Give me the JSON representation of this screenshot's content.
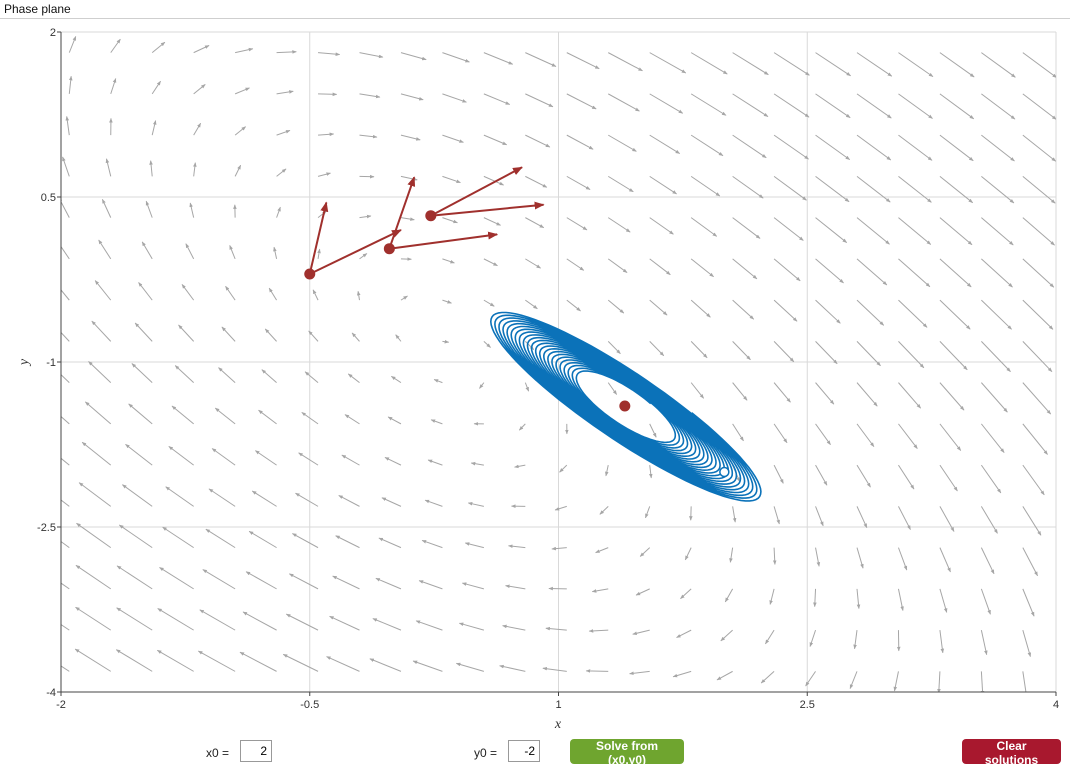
{
  "window": {
    "title": "Phase plane"
  },
  "controls": {
    "x0_label": "x0 =",
    "x0_value": "2",
    "y0_label": "y0 =",
    "y0_value": "-2",
    "solve_label": "Solve from (x0,y0)",
    "clear_label": "Clear solutions"
  },
  "colors": {
    "trajectory": "#0b72b9",
    "marker": "#a0302d",
    "field": "#a6a6a6",
    "grid": "#d9d9d9",
    "solve": "#6fa52f",
    "clear": "#a8182e"
  },
  "chart_data": {
    "type": "scatter",
    "xlabel": "x",
    "ylabel": "y",
    "xlim": [
      -2,
      4
    ],
    "ylim": [
      -4,
      2
    ],
    "x_ticks": [
      "-2",
      "-0.5",
      "1",
      "2.5",
      "4"
    ],
    "x_tick_values": [
      -2,
      -0.5,
      1,
      2.5,
      4
    ],
    "y_ticks": [
      "2",
      "0.5",
      "-1",
      "-2.5",
      "-4"
    ],
    "y_tick_values": [
      2,
      0.5,
      -1,
      -2.5,
      -4
    ],
    "grid": true,
    "equilibrium": {
      "x": 1.4,
      "y": -1.4
    },
    "start_point": {
      "x": 2.0,
      "y": -2.0
    },
    "spiral": {
      "center": [
        1.4,
        -1.4
      ],
      "rotation_deg": -34,
      "turns": 22,
      "semi_major": [
        0.67,
        1.97
      ],
      "semi_minor": [
        0.32,
        0.62
      ]
    },
    "probe_points": [
      {
        "x": -0.5,
        "y": -0.2,
        "v1": [
          0.1,
          0.65
        ],
        "v2": [
          0.55,
          0.4
        ]
      },
      {
        "x": -0.02,
        "y": 0.03,
        "v1": [
          0.15,
          0.65
        ],
        "v2": [
          0.65,
          0.13
        ]
      },
      {
        "x": 0.23,
        "y": 0.33,
        "v1": [
          0.55,
          0.44
        ],
        "v2": [
          0.68,
          0.1
        ]
      }
    ]
  }
}
